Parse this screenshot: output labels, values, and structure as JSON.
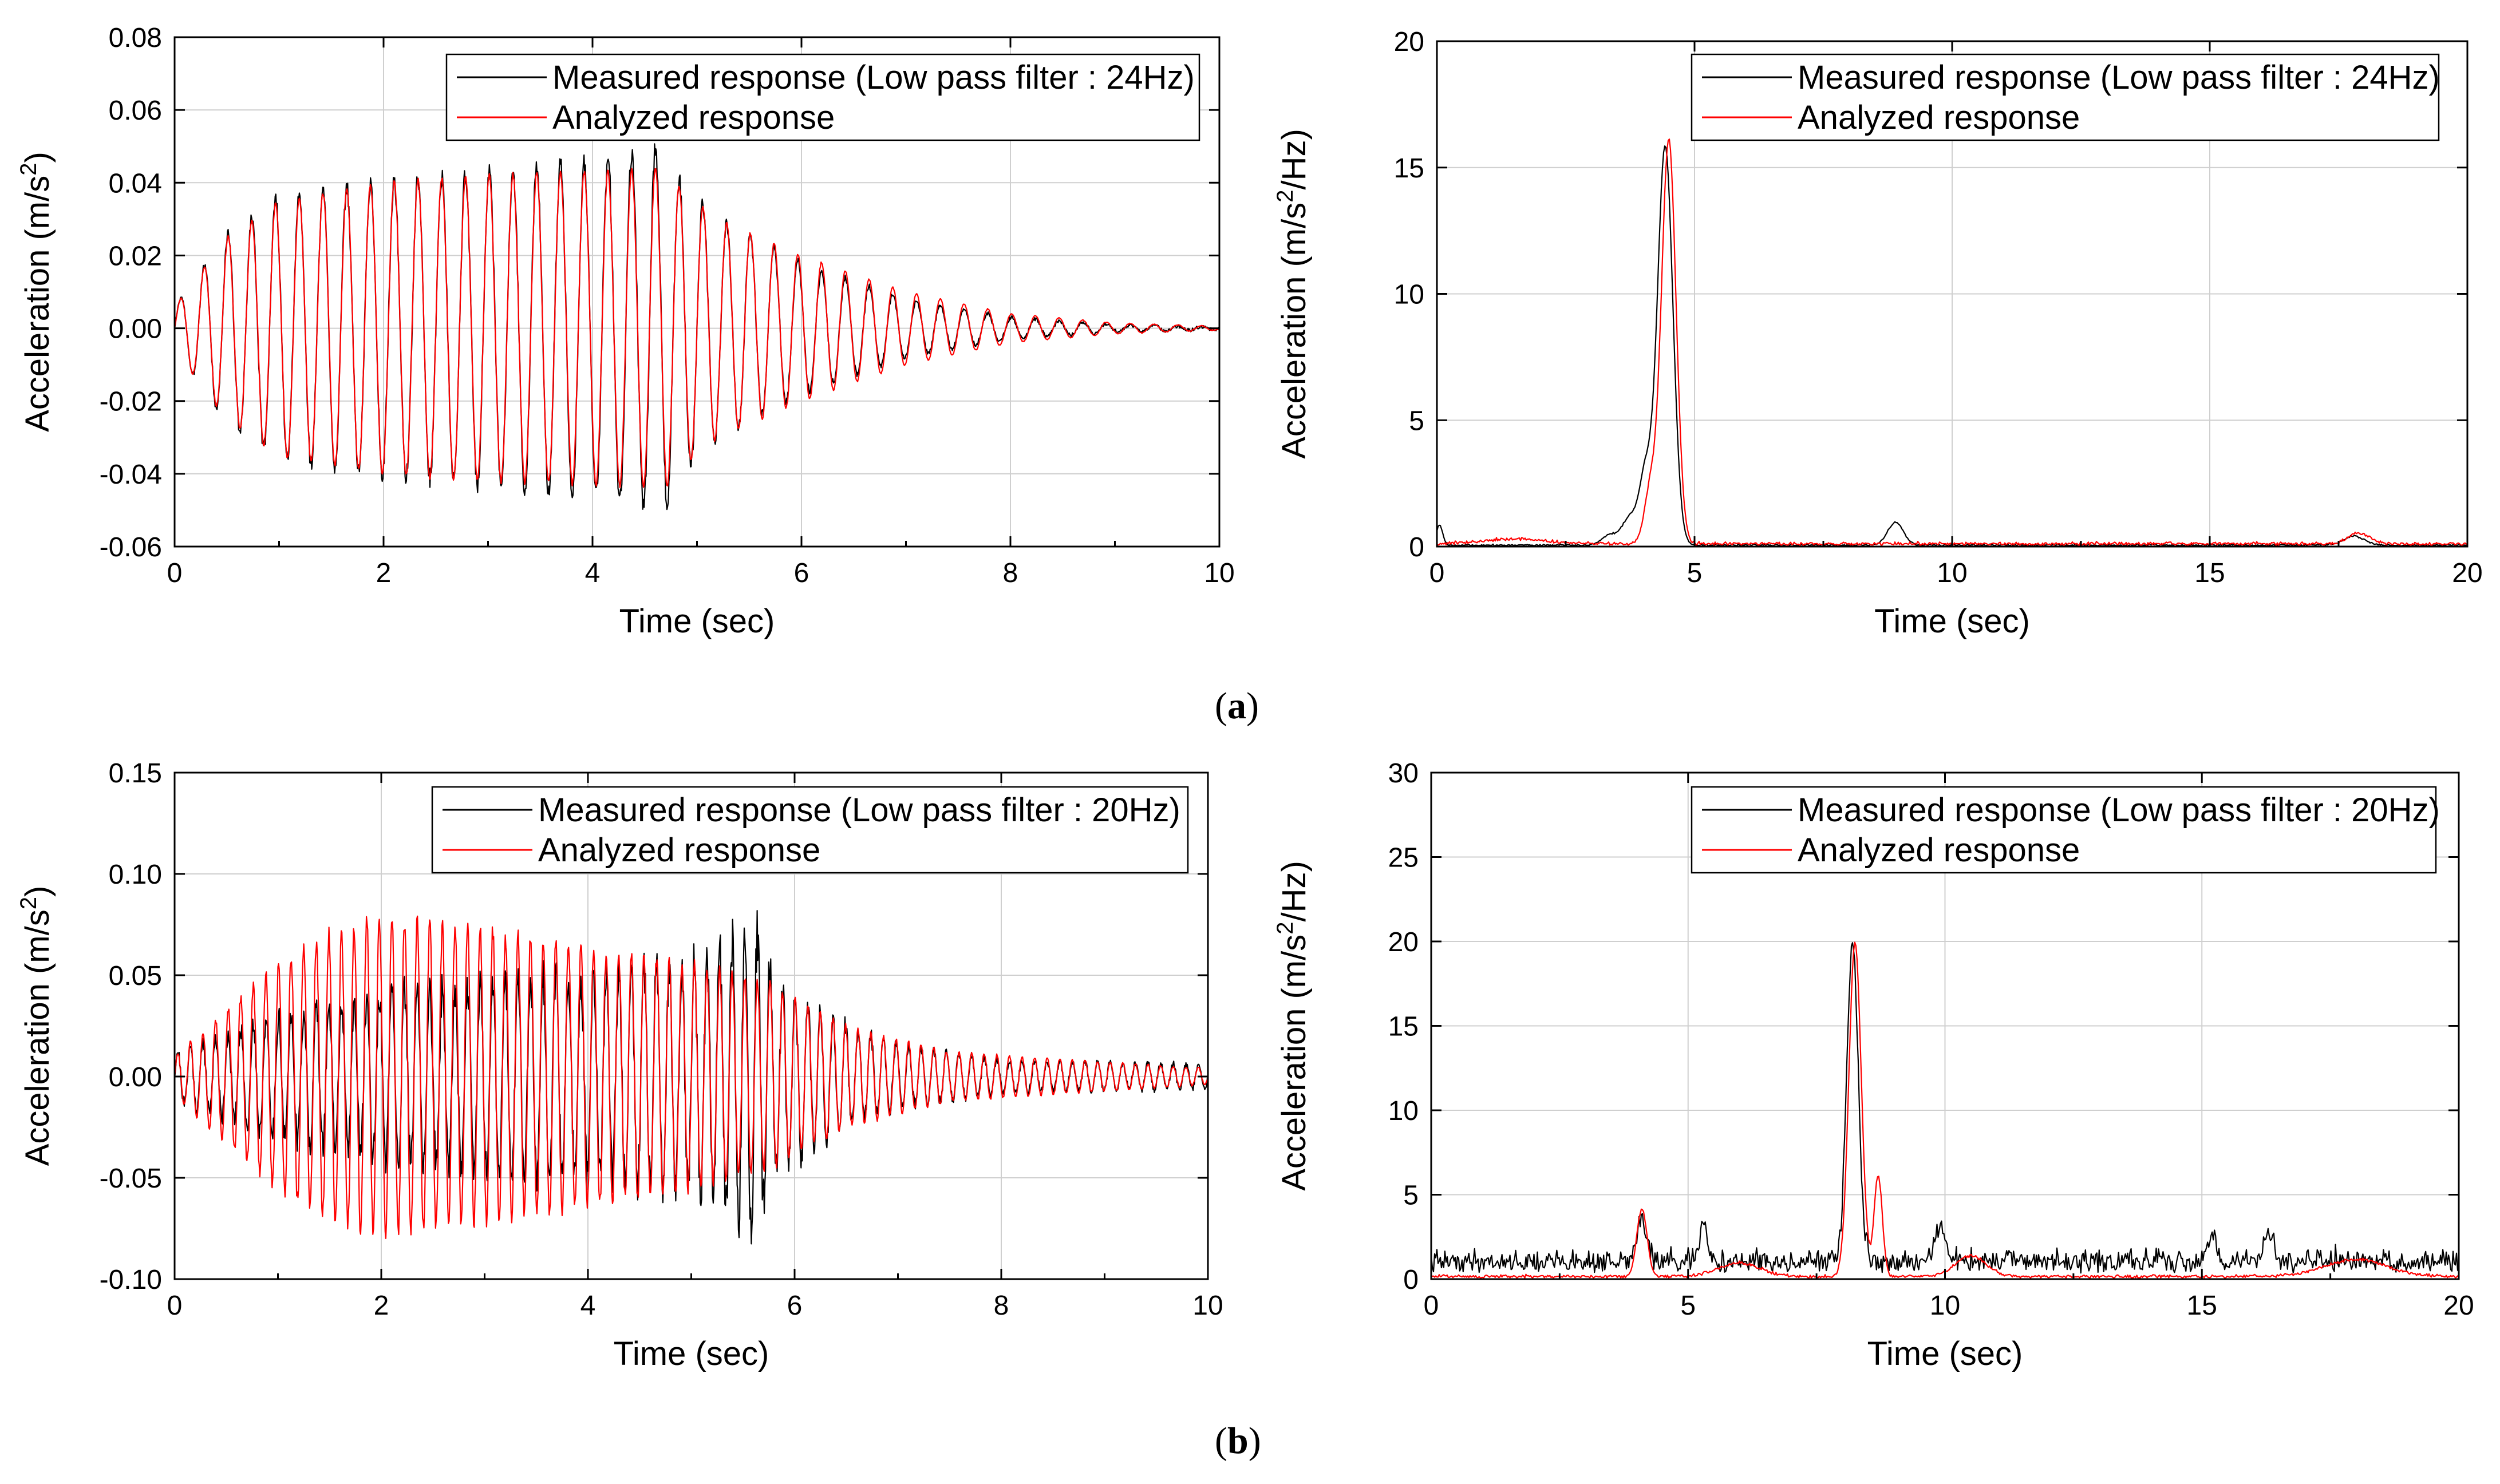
{
  "captions": {
    "a": "a",
    "b": "b"
  },
  "chart_data": [
    {
      "id": "a-time",
      "type": "line",
      "xlabel": "Time (sec)",
      "ylabel": "Acceleration (m/s^2)",
      "ylabel_base": "Acceleration (m/s",
      "ylabel_sup": "2",
      "ylabel_tail": ")",
      "xlim": [
        0,
        10
      ],
      "ylim": [
        -0.06,
        0.08
      ],
      "xticks": [
        0,
        2,
        4,
        6,
        8,
        10
      ],
      "xtick_labels": [
        "0",
        "2",
        "4",
        "6",
        "8",
        "10"
      ],
      "yticks": [
        -0.06,
        -0.04,
        -0.02,
        0.0,
        0.02,
        0.04,
        0.06,
        0.08
      ],
      "ytick_labels": [
        "-0.06",
        "-0.04",
        "-0.02",
        "0.00",
        "0.02",
        "0.04",
        "0.06",
        "0.08"
      ],
      "grid": true,
      "legend_position": "top-right",
      "series": [
        {
          "name": "Measured response (Low pass filter : 24Hz)",
          "color": "#000000",
          "kind": "ts",
          "freq": 4.4,
          "env": [
            [
              0,
              0.006
            ],
            [
              0.5,
              0.026
            ],
            [
              1,
              0.036
            ],
            [
              2,
              0.04
            ],
            [
              3,
              0.043
            ],
            [
              4,
              0.046
            ],
            [
              4.7,
              0.05
            ],
            [
              4.8,
              0.042
            ],
            [
              5.2,
              0.03
            ],
            [
              6,
              0.018
            ],
            [
              7,
              0.008
            ],
            [
              8,
              0.003
            ],
            [
              9,
              0.001
            ],
            [
              10,
              0.0003
            ]
          ],
          "noise": 0.003,
          "seed": 3
        },
        {
          "name": "Analyzed response",
          "color": "#ff0000",
          "kind": "ts",
          "freq": 4.4,
          "env": [
            [
              0,
              0.006
            ],
            [
              0.5,
              0.025
            ],
            [
              1,
              0.035
            ],
            [
              2,
              0.04
            ],
            [
              3,
              0.042
            ],
            [
              4,
              0.043
            ],
            [
              4.7,
              0.044
            ],
            [
              4.8,
              0.04
            ],
            [
              5.2,
              0.03
            ],
            [
              6,
              0.02
            ],
            [
              7,
              0.01
            ],
            [
              8,
              0.004
            ],
            [
              9,
              0.0015
            ],
            [
              10,
              0.0005
            ]
          ],
          "noise": 0.0008,
          "seed": 11
        }
      ]
    },
    {
      "id": "a-spectrum",
      "type": "line",
      "xlabel": "Time (sec)",
      "ylabel": "Acceleration (m/s^2/Hz)",
      "ylabel_base": "Acceleration (m/s",
      "ylabel_sup": "2",
      "ylabel_tail": "/Hz)",
      "xlim": [
        0,
        20
      ],
      "ylim": [
        0,
        20
      ],
      "xticks": [
        0,
        5,
        10,
        15,
        20
      ],
      "xtick_labels": [
        "0",
        "5",
        "10",
        "15",
        "20"
      ],
      "yticks": [
        0,
        5,
        10,
        15,
        20
      ],
      "ytick_labels": [
        "0",
        "5",
        "10",
        "15",
        "20"
      ],
      "grid": true,
      "legend_position": "top-right",
      "series": [
        {
          "name": "Measured response (Low pass filter : 24Hz)",
          "color": "#000000",
          "kind": "spec",
          "baseline": 0.05,
          "noise": 0.05,
          "peaks": [
            [
              4.43,
              15.8,
              0.15
            ],
            [
              4.05,
              2.7,
              0.12
            ],
            [
              3.75,
              1.1,
              0.15
            ],
            [
              3.35,
              0.4,
              0.15
            ],
            [
              8.9,
              0.9,
              0.15
            ],
            [
              17.8,
              0.35,
              0.2
            ],
            [
              0.05,
              0.8,
              0.06
            ]
          ],
          "seed": 5
        },
        {
          "name": "Analyzed response",
          "color": "#ff0000",
          "kind": "spec",
          "baseline": 0.1,
          "noise": 0.08,
          "peaks": [
            [
              4.5,
              16.0,
              0.14
            ],
            [
              4.15,
              2.2,
              0.12
            ],
            [
              1.5,
              0.2,
              0.6
            ],
            [
              17.9,
              0.4,
              0.22
            ]
          ],
          "seed": 9
        }
      ]
    },
    {
      "id": "b-time",
      "type": "line",
      "xlabel": "Time (sec)",
      "ylabel": "Acceleration (m/s^2)",
      "ylabel_base": "Acceleration (m/s",
      "ylabel_sup": "2",
      "ylabel_tail": ")",
      "xlim": [
        0,
        10
      ],
      "ylim": [
        -0.1,
        0.15
      ],
      "xticks": [
        0,
        2,
        4,
        6,
        8,
        10
      ],
      "xtick_labels": [
        "0",
        "2",
        "4",
        "6",
        "8",
        "10"
      ],
      "yticks": [
        -0.1,
        -0.05,
        0.0,
        0.05,
        0.1,
        0.15
      ],
      "ytick_labels": [
        "-0.10",
        "-0.05",
        "0.00",
        "0.05",
        "0.10",
        "0.15"
      ],
      "grid": true,
      "legend_position": "top-right",
      "series": [
        {
          "name": "Measured response (Low pass filter : 20Hz)",
          "color": "#000000",
          "kind": "ts",
          "freq": 8.2,
          "env": [
            [
              0,
              0.012
            ],
            [
              1,
              0.03
            ],
            [
              2,
              0.04
            ],
            [
              3,
              0.046
            ],
            [
              4,
              0.05
            ],
            [
              5,
              0.056
            ],
            [
              5.6,
              0.075
            ],
            [
              5.8,
              0.05
            ],
            [
              6.3,
              0.03
            ],
            [
              7,
              0.015
            ],
            [
              8,
              0.008
            ],
            [
              10,
              0.006
            ]
          ],
          "noise": 0.01,
          "seed": 21
        },
        {
          "name": "Analyzed response",
          "color": "#ff0000",
          "kind": "ts",
          "freq": 8.2,
          "env": [
            [
              0,
              0.01
            ],
            [
              1,
              0.055
            ],
            [
              1.5,
              0.07
            ],
            [
              2,
              0.078
            ],
            [
              3,
              0.072
            ],
            [
              4,
              0.063
            ],
            [
              5,
              0.055
            ],
            [
              5.8,
              0.045
            ],
            [
              6.5,
              0.025
            ],
            [
              7.5,
              0.012
            ],
            [
              10,
              0.004
            ]
          ],
          "noise": 0.003,
          "seed": 33
        }
      ]
    },
    {
      "id": "b-spectrum",
      "type": "line",
      "xlabel": "Time (sec)",
      "ylabel": "Acceleration (m/s^2/Hz)",
      "ylabel_base": "Acceleration (m/s",
      "ylabel_sup": "2",
      "ylabel_tail": "/Hz)",
      "xlim": [
        0,
        20
      ],
      "ylim": [
        0,
        30
      ],
      "xticks": [
        0,
        5,
        10,
        15,
        20
      ],
      "xtick_labels": [
        "0",
        "5",
        "10",
        "15",
        "20"
      ],
      "yticks": [
        0,
        5,
        10,
        15,
        20,
        25,
        30
      ],
      "ytick_labels": [
        "0",
        "5",
        "10",
        "15",
        "20",
        "25",
        "30"
      ],
      "grid": true,
      "legend_position": "top-right",
      "series": [
        {
          "name": "Measured response (Low pass filter : 20Hz)",
          "color": "#000000",
          "kind": "spec",
          "baseline": 0.9,
          "noise": 0.9,
          "peaks": [
            [
              8.2,
              19.0,
              0.11
            ],
            [
              4.1,
              2.5,
              0.1
            ],
            [
              5.3,
              2.0,
              0.08
            ],
            [
              9.9,
              2.2,
              0.1
            ],
            [
              16.3,
              1.8,
              0.1
            ],
            [
              15.2,
              1.5,
              0.1
            ]
          ],
          "seed": 41
        },
        {
          "name": "Analyzed response",
          "color": "#ff0000",
          "kind": "spec",
          "baseline": 0.15,
          "noise": 0.1,
          "peaks": [
            [
              8.25,
              19.8,
              0.12
            ],
            [
              8.7,
              6.0,
              0.08
            ],
            [
              4.1,
              4.0,
              0.1
            ],
            [
              10.5,
              1.2,
              0.3
            ],
            [
              6.0,
              0.8,
              0.4
            ],
            [
              18.0,
              1.0,
              0.6
            ]
          ],
          "seed": 47
        }
      ]
    }
  ]
}
